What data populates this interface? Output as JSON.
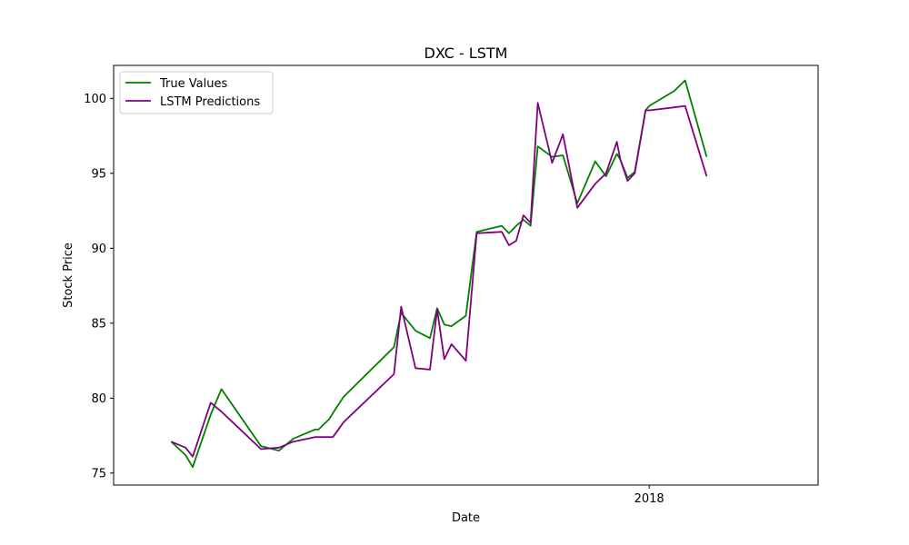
{
  "chart_data": {
    "type": "line",
    "title": "DXC - LSTM",
    "xlabel": "Date",
    "ylabel": "Stock Price",
    "xlim": [
      "2017-08-05",
      "2018-02-17"
    ],
    "ylim": [
      74.2,
      102.2
    ],
    "x_ticks": [
      {
        "value": "2018-01-01",
        "label": "2018"
      }
    ],
    "y_ticks": [
      75,
      80,
      85,
      90,
      95,
      100
    ],
    "grid": false,
    "legend_position": "top-left",
    "x": [
      "2017-08-21",
      "2017-08-25",
      "2017-08-27",
      "2017-09-01",
      "2017-09-04",
      "2017-09-15",
      "2017-09-20",
      "2017-09-24",
      "2017-09-30",
      "2017-10-01",
      "2017-10-04",
      "2017-10-05",
      "2017-10-08",
      "2017-10-22",
      "2017-10-24",
      "2017-10-28",
      "2017-11-01",
      "2017-11-03",
      "2017-11-05",
      "2017-11-07",
      "2017-11-11",
      "2017-11-14",
      "2017-11-21",
      "2017-11-23",
      "2017-11-25",
      "2017-11-27",
      "2017-11-29",
      "2017-12-01",
      "2017-12-05",
      "2017-12-08",
      "2017-12-12",
      "2017-12-17",
      "2017-12-20",
      "2017-12-23",
      "2017-12-24",
      "2017-12-26",
      "2017-12-28",
      "2017-12-31",
      "2018-01-01",
      "2018-01-08",
      "2018-01-11",
      "2018-01-17"
    ],
    "series": [
      {
        "name": "True Values",
        "color": "#008000",
        "values": [
          77.1,
          76.2,
          75.4,
          78.9,
          80.6,
          76.8,
          76.5,
          77.3,
          77.9,
          77.9,
          78.6,
          79.0,
          80.1,
          83.4,
          85.7,
          84.5,
          84.0,
          86.0,
          84.9,
          84.8,
          85.5,
          91.1,
          91.5,
          91.0,
          91.5,
          91.9,
          91.5,
          96.8,
          96.1,
          96.2,
          93.0,
          95.8,
          94.8,
          96.3,
          95.9,
          94.7,
          95.1,
          99.2,
          99.5,
          100.5,
          101.2,
          96.1
        ]
      },
      {
        "name": "LSTM Predictions",
        "color": "#800080",
        "values": [
          77.1,
          76.7,
          76.1,
          79.7,
          79.1,
          76.6,
          76.7,
          77.1,
          77.4,
          77.4,
          77.4,
          77.4,
          78.4,
          81.6,
          86.1,
          82.0,
          81.9,
          85.9,
          82.6,
          83.6,
          82.5,
          91.0,
          91.1,
          90.2,
          90.5,
          92.2,
          91.7,
          99.7,
          95.7,
          97.6,
          92.7,
          94.3,
          95.0,
          97.1,
          95.9,
          94.5,
          95.0,
          99.2,
          99.2,
          99.4,
          99.5,
          94.8
        ]
      }
    ]
  }
}
